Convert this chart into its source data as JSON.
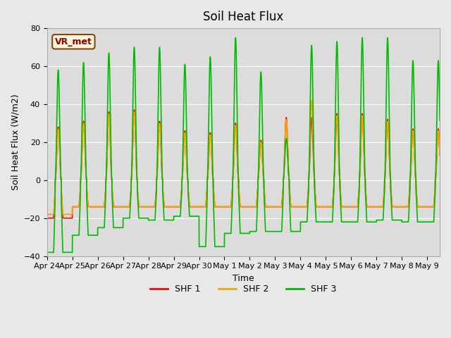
{
  "title": "Soil Heat Flux",
  "ylabel": "Soil Heat Flux (W/m2)",
  "xlabel": "Time",
  "ylim": [
    -40,
    80
  ],
  "background_color": "#e8e8e8",
  "plot_bg_color": "#dcdcdc",
  "legend_label": "VR_met",
  "series_labels": [
    "SHF 1",
    "SHF 2",
    "SHF 3"
  ],
  "series_colors": [
    "#ff0000",
    "#ffa500",
    "#00bb00"
  ],
  "line_width": 1.2,
  "xtick_labels": [
    "Apr 24",
    "Apr 25",
    "Apr 26",
    "Apr 27",
    "Apr 28",
    "Apr 29",
    "Apr 30",
    "May 1",
    "May 2",
    "May 3",
    "May 4",
    "May 5",
    "May 6",
    "May 7",
    "May 8",
    "May 9"
  ],
  "n_days": 15.5,
  "points_per_day": 240,
  "shf1_day_peaks": [
    28,
    31,
    36,
    37,
    31,
    26,
    25,
    30,
    21,
    33,
    33,
    35,
    35,
    32,
    27
  ],
  "shf1_night_troughs": [
    -20,
    -14,
    -14,
    -14,
    -14,
    -14,
    -14,
    -14,
    -14,
    -14,
    -14,
    -14,
    -14,
    -14,
    -14
  ],
  "shf2_day_peaks": [
    27,
    30,
    35,
    36,
    30,
    25,
    24,
    29,
    20,
    32,
    42,
    34,
    34,
    31,
    26
  ],
  "shf2_night_troughs": [
    -18,
    -14,
    -14,
    -14,
    -14,
    -14,
    -14,
    -14,
    -14,
    -14,
    -14,
    -14,
    -14,
    -14,
    -14
  ],
  "shf3_day_peaks": [
    58,
    62,
    67,
    70,
    70,
    61,
    65,
    75,
    57,
    22,
    71,
    73,
    75,
    75,
    63
  ],
  "shf3_night_troughs": [
    -38,
    -29,
    -25,
    -20,
    -21,
    -19,
    -35,
    -28,
    -27,
    -27,
    -22,
    -22,
    -22,
    -21,
    -22
  ]
}
